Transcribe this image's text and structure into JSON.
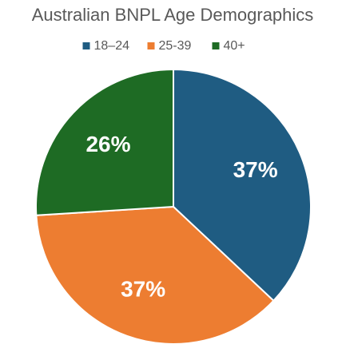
{
  "chart_data": {
    "type": "pie",
    "title": "Australian BNPL Age Demographics",
    "categories": [
      "18–24",
      "25-39",
      "40+"
    ],
    "values": [
      37,
      37,
      26
    ],
    "value_labels": [
      "37%",
      "37%",
      "26%"
    ],
    "colors": [
      "#1f5c82",
      "#ed7d31",
      "#1e6b24"
    ],
    "legend": "top"
  }
}
